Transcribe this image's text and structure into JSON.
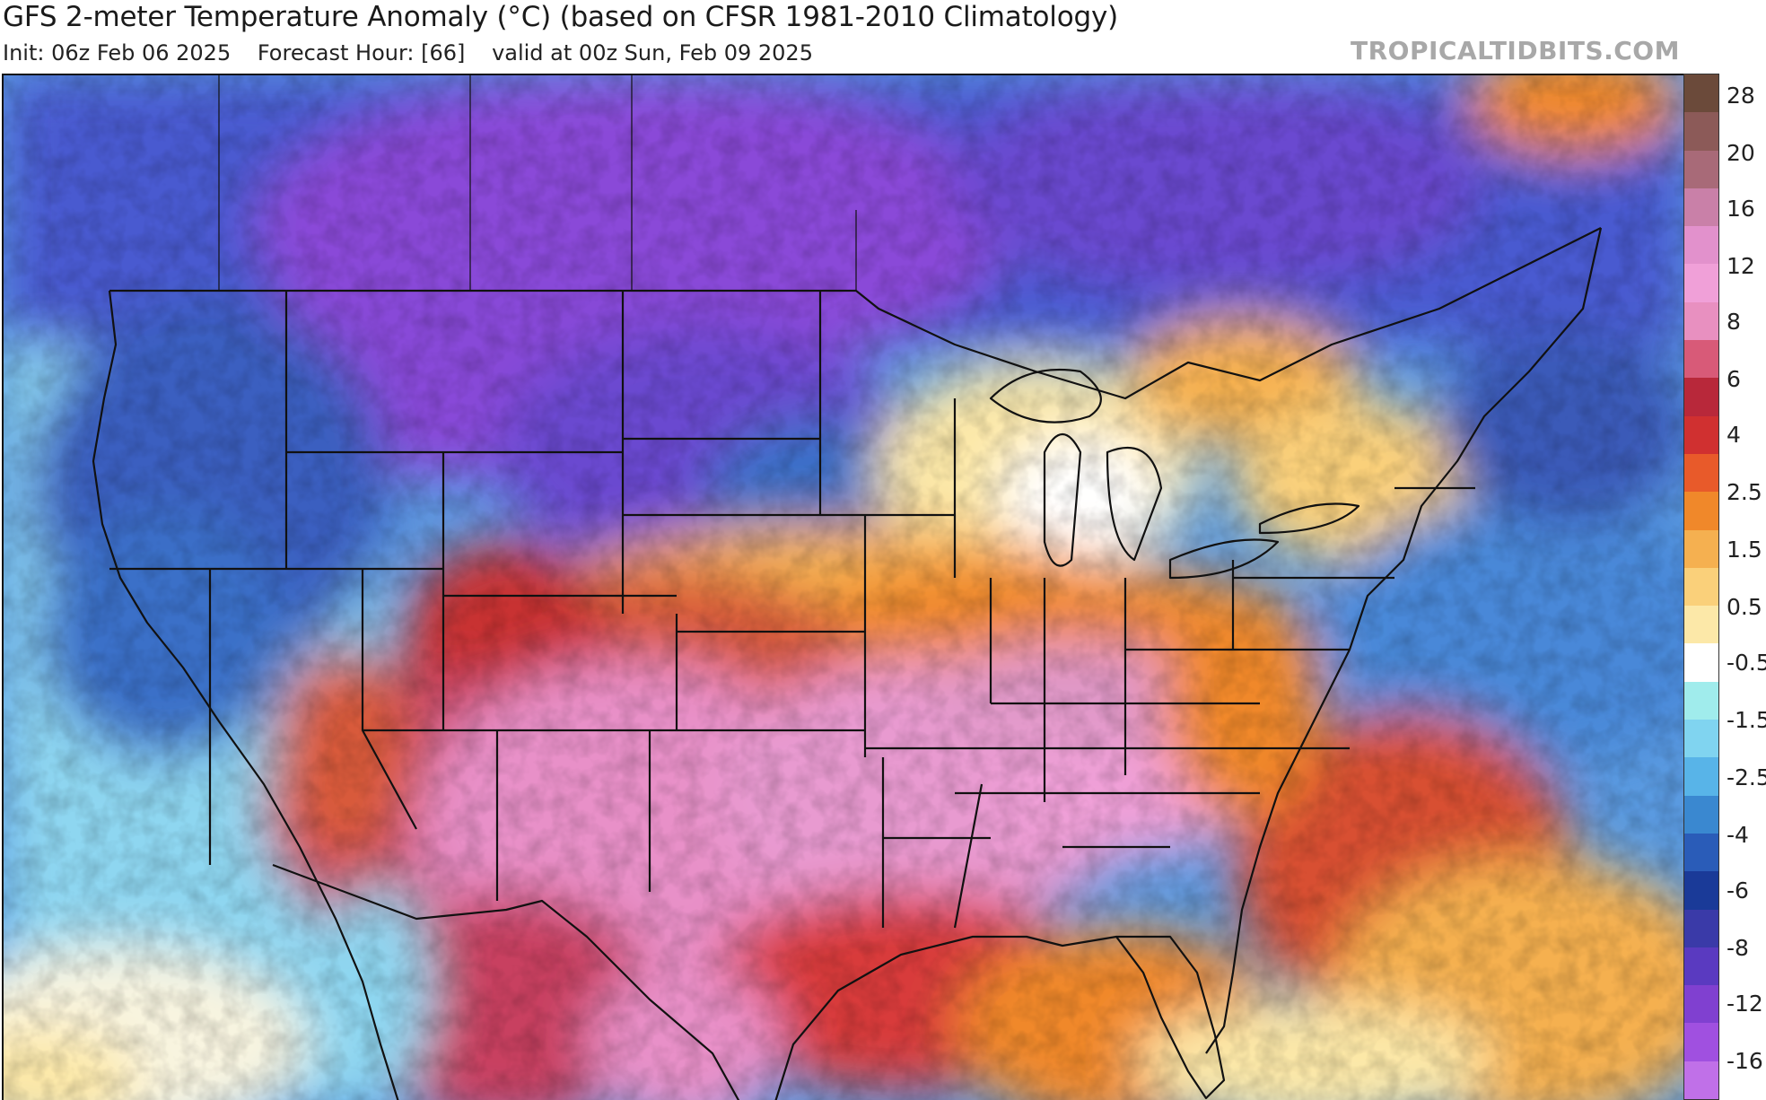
{
  "header": {
    "title": "GFS 2-meter Temperature Anomaly (°C) (based on CFSR 1981-2010 Climatology)",
    "init": "Init: 06z Feb 06 2025",
    "forecast_hour": "Forecast Hour: [66]",
    "valid": "valid at 00z Sun, Feb 09 2025",
    "brand": "TROPICALTIDBITS.COM"
  },
  "colorbar": {
    "swatches": [
      "#6b4a3a",
      "#8c5a58",
      "#a86a78",
      "#c980a8",
      "#e291cc",
      "#f0a0d8",
      "#e890c0",
      "#d85a78",
      "#b8283a",
      "#d03030",
      "#e85a2a",
      "#f0882a",
      "#f5b050",
      "#fad07a",
      "#fce8a8",
      "#ffffff",
      "#a0ecec",
      "#80d4f0",
      "#58b4e8",
      "#3a88d0",
      "#2a5cb8",
      "#1a3a98",
      "#3a3aa8",
      "#5a3ac0",
      "#8040d0",
      "#a050e0",
      "#c070e8"
    ],
    "labels": [
      "28",
      "20",
      "16",
      "12",
      "8",
      "6",
      "4",
      "2.5",
      "1.5",
      "0.5",
      "-0.5",
      "-1.5",
      "-2.5",
      "-4",
      "-6",
      "-8",
      "-12",
      "-16"
    ]
  },
  "map": {
    "icons": [
      "temperature-anomaly-field",
      "state-borders",
      "coastlines"
    ]
  }
}
